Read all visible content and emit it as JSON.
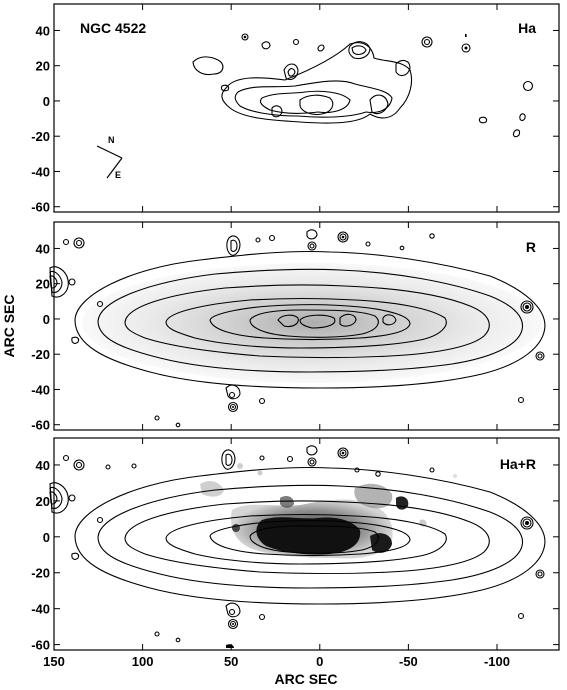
{
  "figure": {
    "xlabel": "ARC SEC",
    "ylabel": "ARC SEC",
    "xticks": [
      "150",
      "100",
      "50",
      "0",
      "-50",
      "-100"
    ],
    "yticks": [
      "40",
      "20",
      "0",
      "-20",
      "-40",
      "-60"
    ],
    "xlim": [
      150,
      -135
    ],
    "ylim": [
      -63,
      55
    ],
    "compass": {
      "north": "N",
      "east": "E"
    }
  },
  "panels": [
    {
      "object": "NGC 4522",
      "label": "Ha",
      "content": "H-alpha emission contours"
    },
    {
      "object": "",
      "label": "R",
      "content": "R-band continuum contours over greyscale"
    },
    {
      "object": "",
      "label": "Ha+R",
      "content": "R-band contours over H-alpha greyscale"
    }
  ],
  "chart_data": [
    {
      "type": "contour",
      "title": "NGC 4522",
      "panel_label": "Ha",
      "xlabel": "",
      "ylabel": "",
      "xlim": [
        150,
        -135
      ],
      "ylim": [
        -63,
        55
      ],
      "xticks": [
        150,
        100,
        50,
        0,
        -50,
        -100
      ],
      "yticks": [
        40,
        20,
        0,
        -20,
        -40,
        -60
      ]
    },
    {
      "type": "contour",
      "panel_label": "R",
      "xlabel": "",
      "ylabel": "ARC SEC",
      "xlim": [
        150,
        -135
      ],
      "ylim": [
        -63,
        55
      ],
      "xticks": [
        150,
        100,
        50,
        0,
        -50,
        -100
      ],
      "yticks": [
        40,
        20,
        0,
        -20,
        -40,
        -60
      ]
    },
    {
      "type": "contour",
      "panel_label": "Ha+R",
      "xlabel": "ARC SEC",
      "ylabel": "",
      "xlim": [
        150,
        -135
      ],
      "ylim": [
        -63,
        55
      ],
      "xticks": [
        150,
        100,
        50,
        0,
        -50,
        -100
      ],
      "yticks": [
        40,
        20,
        0,
        -20,
        -40,
        -60
      ]
    }
  ]
}
